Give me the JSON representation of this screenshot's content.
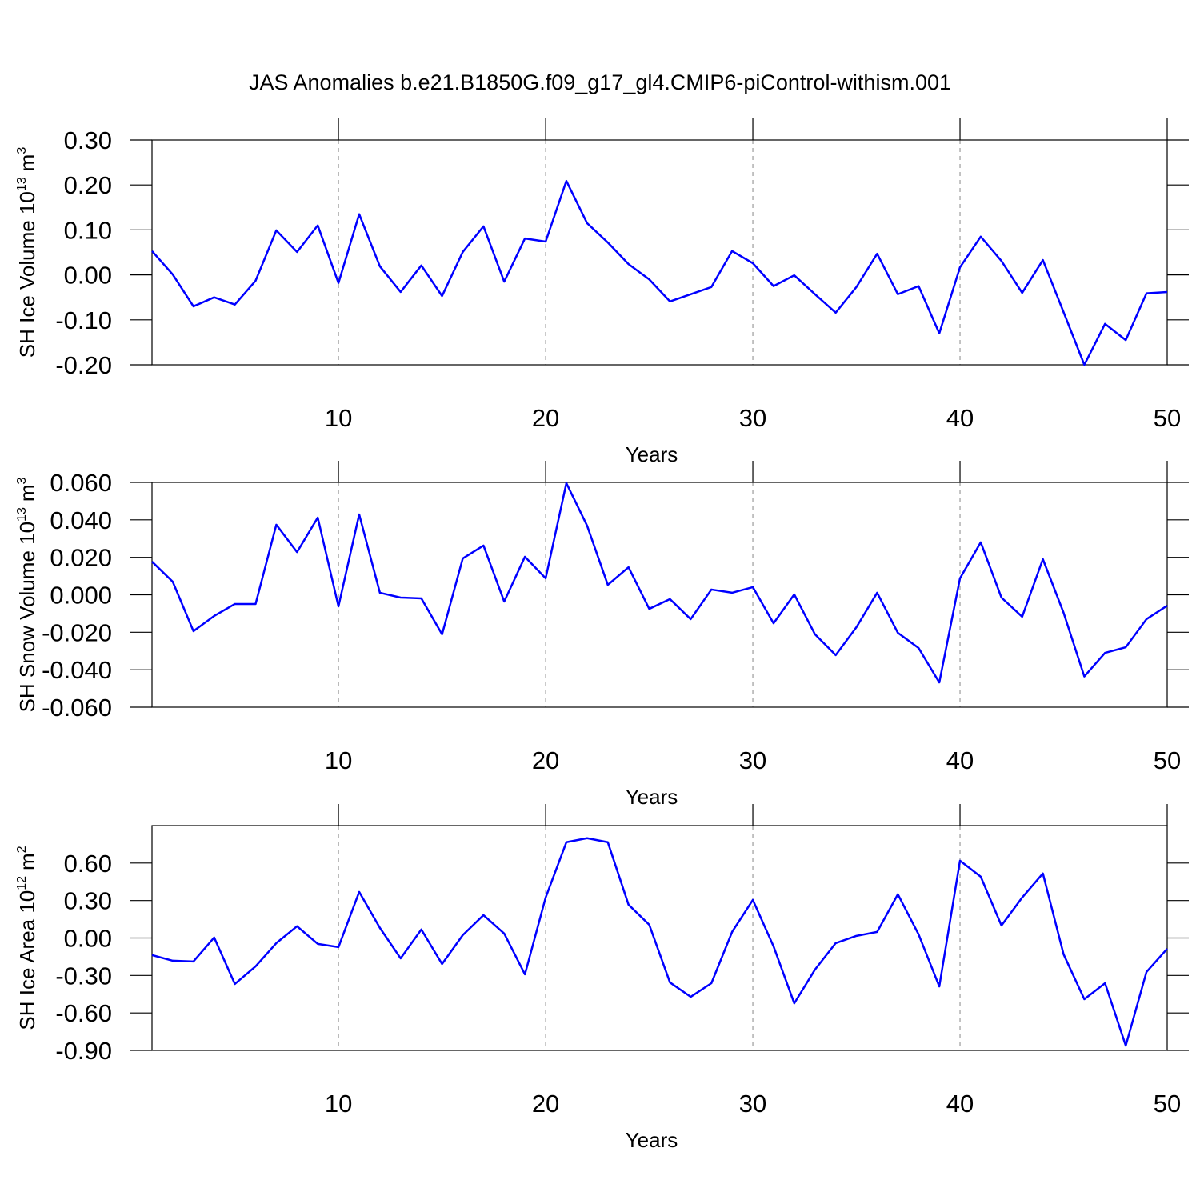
{
  "title": "JAS Anomalies b.e21.B1850G.f09_g17_gl4.CMIP6-piControl-withism.001",
  "chart_data": [
    {
      "type": "line",
      "color": "#0000ff",
      "ylabel": {
        "text": "SH Ice Volume 10",
        "exp": "13",
        "unit": "m",
        "unit_exp": "3"
      },
      "xlabel": "Years",
      "x": [
        1,
        2,
        3,
        4,
        5,
        6,
        7,
        8,
        9,
        10,
        11,
        12,
        13,
        14,
        15,
        16,
        17,
        18,
        19,
        20,
        21,
        22,
        23,
        24,
        25,
        26,
        27,
        28,
        29,
        30,
        31,
        32,
        33,
        34,
        35,
        36,
        37,
        38,
        39,
        40,
        41,
        42,
        43,
        44,
        45,
        46,
        47,
        48,
        49,
        50
      ],
      "values": [
        0.053,
        0.001,
        -0.07,
        -0.05,
        -0.066,
        -0.013,
        0.099,
        0.051,
        0.11,
        -0.018,
        0.135,
        0.019,
        -0.038,
        0.021,
        -0.047,
        0.051,
        0.108,
        -0.015,
        0.081,
        0.074,
        0.209,
        0.115,
        0.072,
        0.024,
        -0.01,
        -0.059,
        -0.043,
        -0.027,
        0.053,
        0.026,
        -0.025,
        -0.001,
        -0.043,
        -0.084,
        -0.027,
        0.047,
        -0.043,
        -0.025,
        -0.13,
        0.017,
        0.085,
        0.031,
        -0.04,
        0.033,
        -0.083,
        -0.2,
        -0.109,
        -0.145,
        -0.041,
        -0.038
      ],
      "xlim": [
        1,
        50
      ],
      "xticks": [
        10,
        20,
        30,
        40,
        50
      ],
      "ylim": [
        -0.2,
        0.3
      ],
      "yticks": [
        {
          "value": -0.2,
          "label": "-0.20"
        },
        {
          "value": -0.1,
          "label": "-0.10"
        },
        {
          "value": 0,
          "label": "0.00"
        },
        {
          "value": 0.1,
          "label": "0.10"
        },
        {
          "value": 0.2,
          "label": "0.20"
        },
        {
          "value": 0.3,
          "label": "0.30"
        }
      ],
      "xgrid": true
    },
    {
      "type": "line",
      "color": "#0000ff",
      "ylabel": {
        "text": "SH Snow Volume 10",
        "exp": "13",
        "unit": "m",
        "unit_exp": "3"
      },
      "xlabel": "Years",
      "x": [
        1,
        2,
        3,
        4,
        5,
        6,
        7,
        8,
        9,
        10,
        11,
        12,
        13,
        14,
        15,
        16,
        17,
        18,
        19,
        20,
        21,
        22,
        23,
        24,
        25,
        26,
        27,
        28,
        29,
        30,
        31,
        32,
        33,
        34,
        35,
        36,
        37,
        38,
        39,
        40,
        41,
        42,
        43,
        44,
        45,
        46,
        47,
        48,
        49,
        50
      ],
      "values": [
        0.0177,
        0.007,
        -0.0194,
        -0.0113,
        -0.0049,
        -0.0049,
        0.0374,
        0.0228,
        0.0412,
        -0.0062,
        0.0429,
        0.0011,
        -0.0015,
        -0.0019,
        -0.0211,
        0.0194,
        0.0263,
        -0.0036,
        0.0203,
        0.0088,
        0.0596,
        0.0369,
        0.0053,
        0.0147,
        -0.0075,
        -0.0023,
        -0.013,
        0.0028,
        0.0011,
        0.0041,
        -0.0152,
        0.0002,
        -0.0211,
        -0.0322,
        -0.0173,
        0.0011,
        -0.0203,
        -0.0284,
        -0.0468,
        0.0088,
        0.028,
        -0.0015,
        -0.0117,
        0.019,
        -0.0096,
        -0.0436,
        -0.031,
        -0.028,
        -0.013,
        -0.0058
      ],
      "xlim": [
        1,
        50
      ],
      "xticks": [
        10,
        20,
        30,
        40,
        50
      ],
      "ylim": [
        -0.06,
        0.06
      ],
      "yticks": [
        {
          "value": -0.06,
          "label": "-0.060"
        },
        {
          "value": -0.04,
          "label": "-0.040"
        },
        {
          "value": -0.02,
          "label": "-0.020"
        },
        {
          "value": 0,
          "label": "0.000"
        },
        {
          "value": 0.02,
          "label": "0.020"
        },
        {
          "value": 0.04,
          "label": "0.040"
        },
        {
          "value": 0.06,
          "label": "0.060"
        }
      ],
      "xgrid": true
    },
    {
      "type": "line",
      "color": "#0000ff",
      "ylabel": {
        "text": "SH Ice Area 10",
        "exp": "12",
        "unit": "m",
        "unit_exp": "2"
      },
      "xlabel": "Years",
      "x": [
        1,
        2,
        3,
        4,
        5,
        6,
        7,
        8,
        9,
        10,
        11,
        12,
        13,
        14,
        15,
        16,
        17,
        18,
        19,
        20,
        21,
        22,
        23,
        24,
        25,
        26,
        27,
        28,
        29,
        30,
        31,
        32,
        33,
        34,
        35,
        36,
        37,
        38,
        39,
        40,
        41,
        42,
        43,
        44,
        45,
        46,
        47,
        48,
        49,
        50
      ],
      "values": [
        -0.137,
        -0.182,
        -0.188,
        0.004,
        -0.368,
        -0.227,
        -0.041,
        0.094,
        -0.047,
        -0.073,
        0.369,
        0.081,
        -0.163,
        0.068,
        -0.208,
        0.023,
        0.183,
        0.036,
        -0.291,
        0.324,
        0.767,
        0.799,
        0.767,
        0.267,
        0.106,
        -0.356,
        -0.471,
        -0.362,
        0.049,
        0.305,
        -0.067,
        -0.523,
        -0.253,
        -0.041,
        0.017,
        0.049,
        0.35,
        0.029,
        -0.388,
        0.619,
        0.491,
        0.1,
        0.324,
        0.517,
        -0.131,
        -0.49,
        -0.362,
        -0.862,
        -0.272,
        -0.086
      ],
      "xlim": [
        1,
        50
      ],
      "xticks": [
        10,
        20,
        30,
        40,
        50
      ],
      "ylim": [
        -0.9,
        0.9
      ],
      "yticks": [
        {
          "value": -0.9,
          "label": "-0.90"
        },
        {
          "value": -0.6,
          "label": "-0.60"
        },
        {
          "value": -0.3,
          "label": "-0.30"
        },
        {
          "value": 0,
          "label": "0.00"
        },
        {
          "value": 0.3,
          "label": "0.30"
        },
        {
          "value": 0.6,
          "label": "0.60"
        }
      ],
      "xgrid": true
    }
  ]
}
